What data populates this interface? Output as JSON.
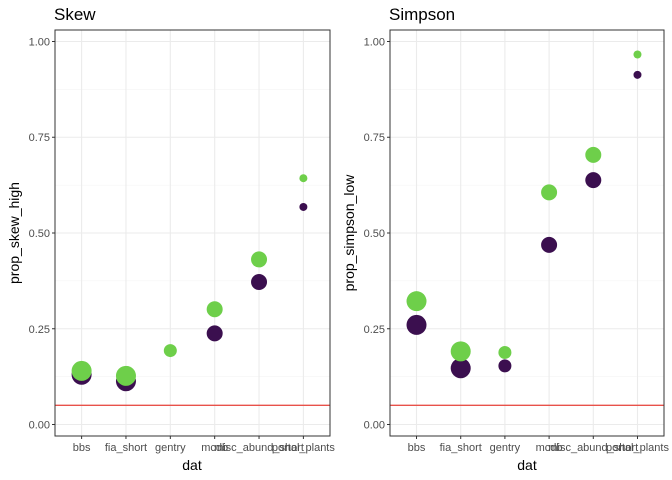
{
  "chart_data": [
    {
      "type": "scatter",
      "title": "Skew",
      "xlabel": "dat",
      "ylabel": "prop_skew_high",
      "categories": [
        "bbs",
        "fia_short",
        "gentry",
        "mcdb",
        "misc_abund_short",
        "portal_plants"
      ],
      "ylim": [
        -0.03,
        1.03
      ],
      "yticks": [
        "0.00",
        "0.25",
        "0.50",
        "0.75",
        "1.00"
      ],
      "ytick_values": [
        0,
        0.25,
        0.5,
        0.75,
        1.0
      ],
      "hline": 0.05,
      "grid": true,
      "series": [
        {
          "color": "#3b0f4f",
          "values": [
            0.13,
            0.113,
            null,
            0.238,
            0.372,
            0.568
          ],
          "sizes": [
            3,
            3,
            null,
            2.3,
            2.3,
            1
          ]
        },
        {
          "color": "#6ecf4a",
          "values": [
            0.14,
            0.127,
            0.193,
            0.301,
            0.431,
            0.643
          ],
          "sizes": [
            3,
            3,
            1.7,
            2.3,
            2.3,
            1
          ]
        }
      ]
    },
    {
      "type": "scatter",
      "title": "Simpson",
      "xlabel": "dat",
      "ylabel": "prop_simpson_low",
      "categories": [
        "bbs",
        "fia_short",
        "gentry",
        "mcdb",
        "misc_abund_short",
        "portal_plants"
      ],
      "ylim": [
        -0.03,
        1.03
      ],
      "yticks": [
        "0.00",
        "0.25",
        "0.50",
        "0.75",
        "1.00"
      ],
      "ytick_values": [
        0,
        0.25,
        0.5,
        0.75,
        1.0
      ],
      "hline": 0.05,
      "grid": true,
      "series": [
        {
          "color": "#3b0f4f",
          "values": [
            0.26,
            0.147,
            0.153,
            0.469,
            0.638,
            0.913
          ],
          "sizes": [
            3,
            3,
            1.7,
            2.3,
            2.3,
            1
          ]
        },
        {
          "color": "#6ecf4a",
          "values": [
            0.322,
            0.191,
            0.188,
            0.606,
            0.704,
            0.966
          ],
          "sizes": [
            3,
            3,
            1.7,
            2.3,
            2.3,
            1
          ]
        }
      ]
    }
  ]
}
